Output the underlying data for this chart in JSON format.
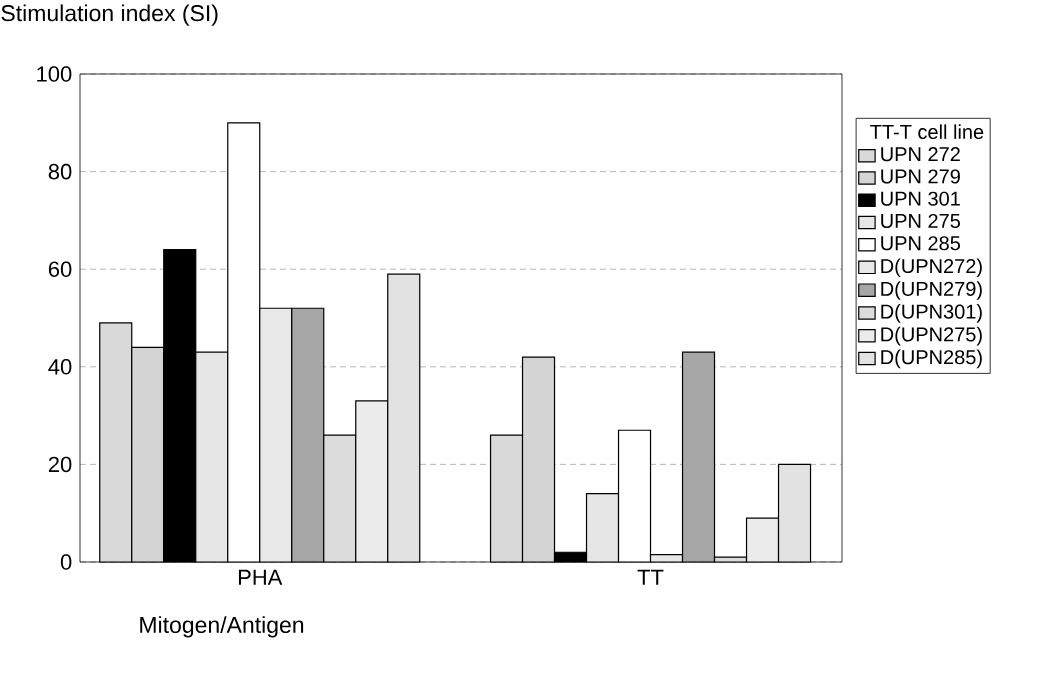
{
  "chart_data": {
    "type": "bar",
    "ylabel": "Stimulation index (SI)",
    "xlabel": "Mitogen/Antigen",
    "legend_title": "TT-T cell line",
    "categories": [
      "PHA",
      "TT"
    ],
    "ylim": [
      0,
      100
    ],
    "yticks": [
      0,
      20,
      40,
      60,
      80,
      100
    ],
    "grid": "y",
    "legend": "right",
    "series": [
      {
        "name": "UPN 272",
        "color": "#d9d9d9",
        "values": [
          49,
          26
        ]
      },
      {
        "name": "UPN 279",
        "color": "#d4d4d4",
        "values": [
          44,
          42
        ]
      },
      {
        "name": "UPN 301",
        "color": "#000000",
        "values": [
          64,
          2
        ]
      },
      {
        "name": "UPN 275",
        "color": "#e6e6e6",
        "values": [
          43,
          14
        ]
      },
      {
        "name": "UPN 285",
        "color": "#ffffff",
        "values": [
          90,
          27
        ]
      },
      {
        "name": "D(UPN272)",
        "color": "#e8e8e8",
        "values": [
          52,
          1.5
        ]
      },
      {
        "name": "D(UPN279)",
        "color": "#a6a6a6",
        "values": [
          52,
          43
        ]
      },
      {
        "name": "D(UPN301)",
        "color": "#dcdcdc",
        "values": [
          26,
          1
        ]
      },
      {
        "name": "D(UPN275)",
        "color": "#ebebeb",
        "values": [
          33,
          9
        ]
      },
      {
        "name": "D(UPN285)",
        "color": "#e2e2e2",
        "values": [
          59,
          20
        ]
      }
    ]
  }
}
